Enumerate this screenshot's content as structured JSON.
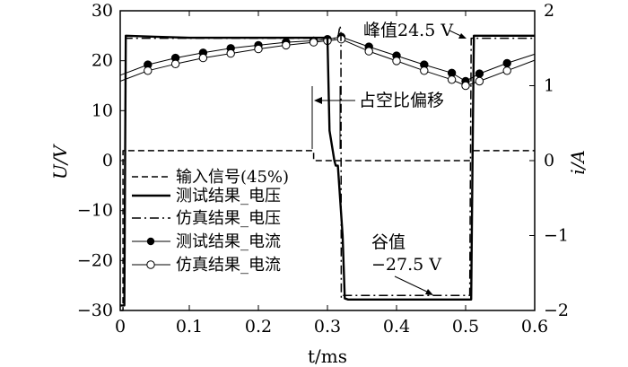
{
  "chart_data": {
    "type": "line",
    "xlabel": "t/ms",
    "ylabel": "U/V",
    "y2label": "i/A",
    "xlim": [
      0,
      0.6
    ],
    "ylim": [
      -30,
      30
    ],
    "y2lim": [
      -2,
      2
    ],
    "xticks": [
      "0",
      "0.1",
      "0.2",
      "0.3",
      "0.4",
      "0.5",
      "0.6"
    ],
    "yticks": [
      "30",
      "20",
      "10",
      "0",
      "−10",
      "−20",
      "−30"
    ],
    "y2ticks": [
      "2",
      "1",
      "0",
      "−1",
      "−2"
    ],
    "annotations": {
      "peak": "峰值24.5 V",
      "duty": "占空比偏移",
      "valley_title": "谷值",
      "valley_value": "−27.5 V"
    },
    "series": [
      {
        "name": "输入信号(45%)",
        "axis": "left",
        "style": "dashed",
        "x": [
          0,
          0.004,
          0.004,
          0.28,
          0.28,
          0.51,
          0.51,
          0.6
        ],
        "y": [
          -30,
          -30,
          2,
          2,
          0,
          0,
          2,
          2
        ]
      },
      {
        "name": "测试结果_电压",
        "axis": "left",
        "style": "solid-thick",
        "x": [
          0,
          0.006,
          0.008,
          0.05,
          0.1,
          0.15,
          0.2,
          0.25,
          0.29,
          0.3,
          0.303,
          0.31,
          0.312,
          0.315,
          0.322,
          0.325,
          0.33,
          0.4,
          0.5,
          0.508,
          0.51,
          0.512,
          0.55,
          0.6
        ],
        "y": [
          -29,
          -29,
          25,
          24.8,
          24.6,
          24.6,
          24.6,
          24.6,
          24.6,
          24.6,
          6,
          0,
          -1,
          -1,
          -15,
          -27.6,
          -27.8,
          -27.8,
          -27.8,
          -27.8,
          0,
          25,
          25,
          25
        ]
      },
      {
        "name": "仿真结果_电压",
        "axis": "left",
        "style": "dashdot",
        "x": [
          0,
          0.006,
          0.008,
          0.29,
          0.3,
          0.315,
          0.318,
          0.3195,
          0.32,
          0.322,
          0.5,
          0.506,
          0.508,
          0.6
        ],
        "y": [
          -29,
          -29,
          24.5,
          24.5,
          24.5,
          24.5,
          27,
          26,
          -27.5,
          -27,
          -27,
          -27,
          24.5,
          24.5
        ]
      },
      {
        "name": "测试结果_电流",
        "axis": "right",
        "style": "solid-filled-markers",
        "x": [
          0,
          0.04,
          0.08,
          0.12,
          0.16,
          0.2,
          0.24,
          0.28,
          0.3,
          0.32,
          0.36,
          0.4,
          0.44,
          0.48,
          0.5,
          0.52,
          0.56,
          0.6
        ],
        "y": [
          1.14,
          1.28,
          1.37,
          1.44,
          1.5,
          1.54,
          1.58,
          1.6,
          1.62,
          1.65,
          1.52,
          1.4,
          1.28,
          1.17,
          1.06,
          1.16,
          1.3,
          1.42
        ]
      },
      {
        "name": "仿真结果_电流",
        "axis": "right",
        "style": "solid-hollow-markers",
        "x": [
          0,
          0.04,
          0.08,
          0.12,
          0.16,
          0.2,
          0.24,
          0.28,
          0.3,
          0.32,
          0.36,
          0.4,
          0.44,
          0.48,
          0.5,
          0.52,
          0.56,
          0.6
        ],
        "y": [
          1.06,
          1.2,
          1.29,
          1.37,
          1.43,
          1.49,
          1.54,
          1.58,
          1.6,
          1.62,
          1.46,
          1.33,
          1.2,
          1.08,
          1.0,
          1.06,
          1.2,
          1.34
        ]
      }
    ]
  }
}
